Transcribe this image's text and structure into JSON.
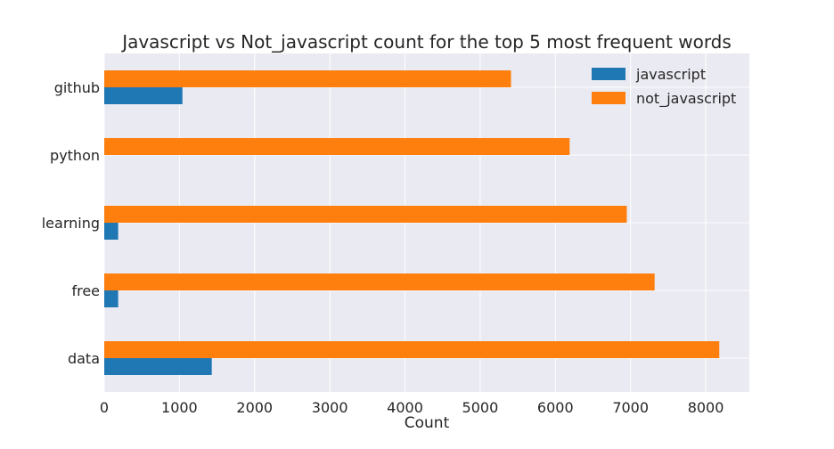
{
  "chart_data": {
    "type": "bar",
    "orientation": "horizontal",
    "title": "Javascript vs Not_javascript count for the top 5 most frequent words",
    "xlabel": "Count",
    "ylabel": "",
    "categories": [
      "data",
      "free",
      "learning",
      "python",
      "github"
    ],
    "series": [
      {
        "name": "javascript",
        "color": "#1f77b4",
        "values": [
          1430,
          185,
          185,
          0,
          1040
        ]
      },
      {
        "name": "not_javascript",
        "color": "#ff7f0e",
        "values": [
          8180,
          7320,
          6950,
          6190,
          5410
        ]
      }
    ],
    "xlim": [
      0,
      8580
    ],
    "xticks": [
      0,
      1000,
      2000,
      3000,
      4000,
      5000,
      6000,
      7000,
      8000
    ],
    "grid": true,
    "legend_position": "top-right",
    "plot_background": "#eaeaf2"
  }
}
